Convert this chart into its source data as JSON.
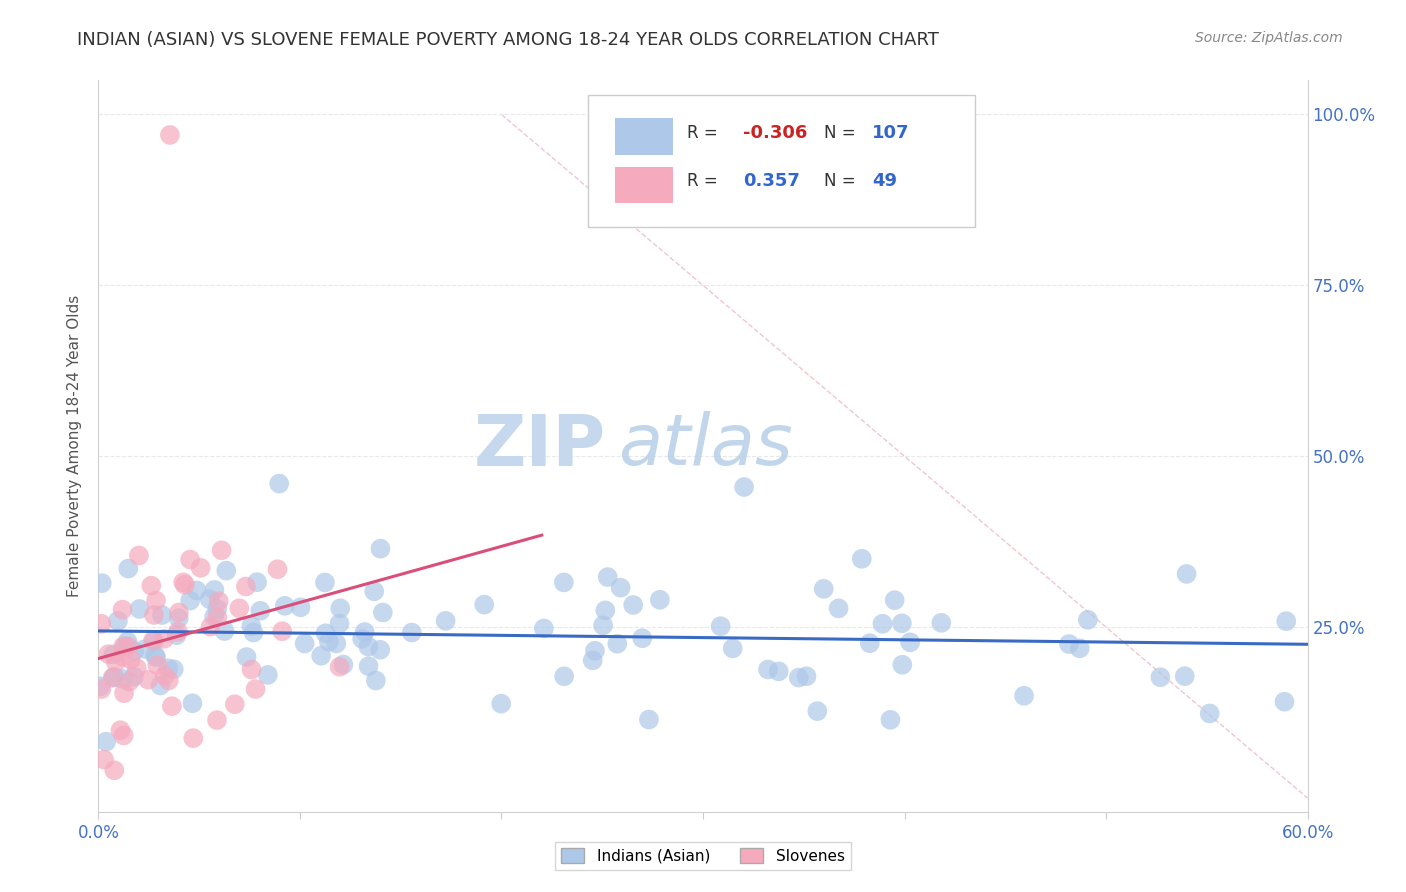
{
  "title": "INDIAN (ASIAN) VS SLOVENE FEMALE POVERTY AMONG 18-24 YEAR OLDS CORRELATION CHART",
  "source": "Source: ZipAtlas.com",
  "ylabel": "Female Poverty Among 18-24 Year Olds",
  "xlim": [
    0.0,
    0.6
  ],
  "ylim": [
    -0.02,
    1.05
  ],
  "R_indian": -0.306,
  "N_indian": 107,
  "R_slovene": 0.357,
  "N_slovene": 49,
  "indian_color": "#adc8e8",
  "slovene_color": "#f5aabe",
  "indian_line_color": "#3a6bc4",
  "slovene_line_color": "#d94f7a",
  "ref_line_color": "#e8b0c0",
  "background_color": "#ffffff",
  "grid_color": "#e8e8e8",
  "watermark_zip": "ZIP",
  "watermark_atlas": "atlas",
  "tick_color": "#4472c4",
  "title_color": "#333333",
  "source_color": "#888888"
}
